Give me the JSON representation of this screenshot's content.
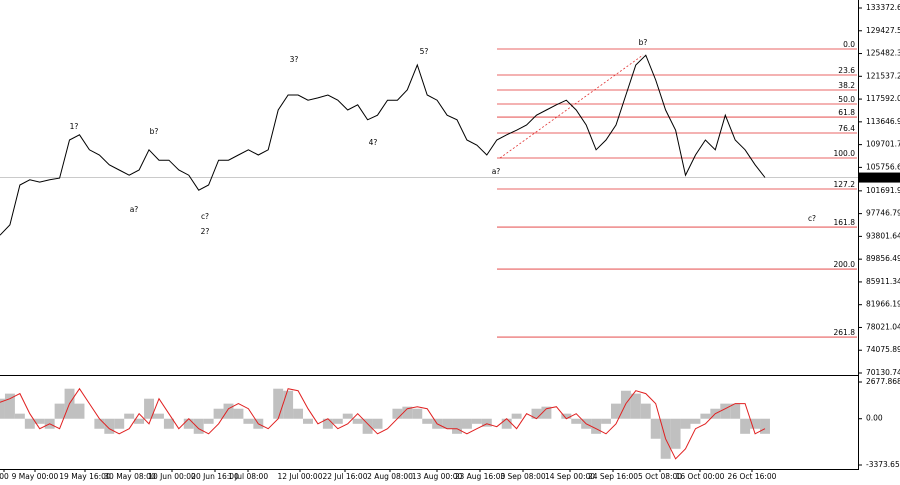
{
  "chart_data": [
    {
      "type": "line",
      "series": [
        {
          "name": "price",
          "color": "#000000",
          "values": [
            94000,
            95800,
            102700,
            103600,
            103200,
            103600,
            103900,
            110500,
            111400,
            108800,
            107900,
            106200,
            105300,
            104400,
            105300,
            108800,
            107000,
            107000,
            105300,
            104400,
            101800,
            102700,
            107000,
            107000,
            107900,
            108800,
            107900,
            108800,
            115700,
            118300,
            118300,
            117400,
            117800,
            118300,
            117400,
            115700,
            116600,
            114000,
            114800,
            117400,
            117400,
            119200,
            123500,
            118300,
            117400,
            114800,
            114000,
            110500,
            109600,
            107900,
            110500,
            111400,
            112200,
            113100,
            114800,
            115700,
            116600,
            117400,
            115700,
            113100,
            108800,
            110500,
            113100,
            118300,
            123500,
            125200,
            120900,
            115700,
            112200,
            104400,
            107900,
            110500,
            108800,
            114800,
            110500,
            108800,
            106200,
            104000
          ]
        }
      ],
      "ylim": [
        70130.74,
        133372.69
      ],
      "yticks": [
        133372.69,
        129427.54,
        125482.39,
        121537.24,
        117592.09,
        113646.94,
        109701.79,
        105756.64,
        101691.94,
        97746.79,
        93801.64,
        89856.49,
        85911.34,
        81966.19,
        78021.04,
        74075.89,
        70130.74
      ],
      "last_price": 103994.36,
      "x_labels": [
        "00",
        "9 May 00:00",
        "19 May 16:00",
        "30 May 08:00",
        "10 Jun 00:00",
        "20 Jun 16:00",
        "1 Jul 08:00",
        "12 Jul 00:00",
        "22 Jul 16:00",
        "2 Aug 08:00",
        "13 Aug 00:00",
        "23 Aug 16:00",
        "3 Sep 08:00",
        "14 Sep 00:00",
        "24 Sep 16:00",
        "5 Oct 08:00",
        "16 Oct 00:00",
        "26 Oct 16:00"
      ],
      "fib_color": "#e03030",
      "fib_levels": [
        {
          "label": "0.0",
          "value": 126270
        },
        {
          "label": "23.6",
          "value": 121760
        },
        {
          "label": "38.2",
          "value": 119160
        },
        {
          "label": "50.0",
          "value": 116740
        },
        {
          "label": "61.8",
          "value": 114480
        },
        {
          "label": "76.4",
          "value": 111710
        },
        {
          "label": "100.0",
          "value": 107380
        },
        {
          "label": "127.2",
          "value": 102010
        },
        {
          "label": "161.8",
          "value": 95420
        },
        {
          "label": "200.0",
          "value": 88140
        },
        {
          "label": "261.8",
          "value": 76360
        }
      ],
      "annotations": [
        {
          "text": "1?",
          "color": "#1c1cc8"
        },
        {
          "text": "b?",
          "color": "#c83030"
        },
        {
          "text": "a?",
          "color": "#c83030"
        },
        {
          "text": "c?",
          "color": "#c83030"
        },
        {
          "text": "2?",
          "color": "#1c1cc8"
        },
        {
          "text": "3?",
          "color": "#1c1cc8"
        },
        {
          "text": "4?",
          "color": "#1c1cc8"
        },
        {
          "text": "5?",
          "color": "#1c1cc8"
        },
        {
          "text": "a?",
          "color": "#1c1c8c"
        },
        {
          "text": "b?",
          "color": "#1c1cc8"
        },
        {
          "text": "c?",
          "color": "#1c1cc8"
        }
      ]
    },
    {
      "type": "bar",
      "series": [
        {
          "name": "histogram",
          "color": "#c0c0c0",
          "values": [
            1460,
            1830,
            370,
            -730,
            -370,
            -730,
            1100,
            2190,
            1100,
            0,
            -730,
            -1100,
            -730,
            370,
            -370,
            1460,
            370,
            -730,
            0,
            -730,
            -1100,
            -370,
            730,
            1100,
            730,
            -370,
            -730,
            0,
            2190,
            2040,
            730,
            -370,
            0,
            -730,
            -370,
            370,
            -370,
            -1100,
            -730,
            0,
            730,
            880,
            730,
            -370,
            -730,
            -730,
            -1100,
            -730,
            -370,
            -580,
            0,
            -730,
            370,
            0,
            730,
            880,
            0,
            370,
            -370,
            -730,
            -1100,
            -370,
            1100,
            2040,
            1830,
            1100,
            -1460,
            -2920,
            -2190,
            -730,
            -370,
            370,
            730,
            1100,
            1100,
            -1100,
            -730,
            -1100
          ]
        },
        {
          "name": "signal",
          "color": "#e02020",
          "values": [
            1200,
            1460,
            1830,
            370,
            -730,
            -370,
            -730,
            1100,
            2190,
            1100,
            0,
            -730,
            -1100,
            -730,
            370,
            -370,
            1460,
            370,
            -730,
            0,
            -730,
            -1100,
            -370,
            730,
            1100,
            730,
            -370,
            -730,
            0,
            2190,
            2040,
            730,
            -370,
            0,
            -730,
            -370,
            370,
            -370,
            -1100,
            -730,
            0,
            730,
            880,
            730,
            -370,
            -730,
            -730,
            -1100,
            -730,
            -370,
            -580,
            0,
            -730,
            370,
            0,
            730,
            880,
            0,
            370,
            -370,
            -730,
            -1100,
            -370,
            1100,
            2040,
            1830,
            1100,
            -1460,
            -2920,
            -2190,
            -730,
            -370,
            370,
            730,
            1100,
            1100,
            -1100,
            -730
          ]
        }
      ],
      "ylim": [
        -3373.653,
        2677.868
      ],
      "yticks": [
        2677.868,
        {
          "value": 0,
          "label": "0.00"
        },
        -3373.653
      ]
    }
  ]
}
